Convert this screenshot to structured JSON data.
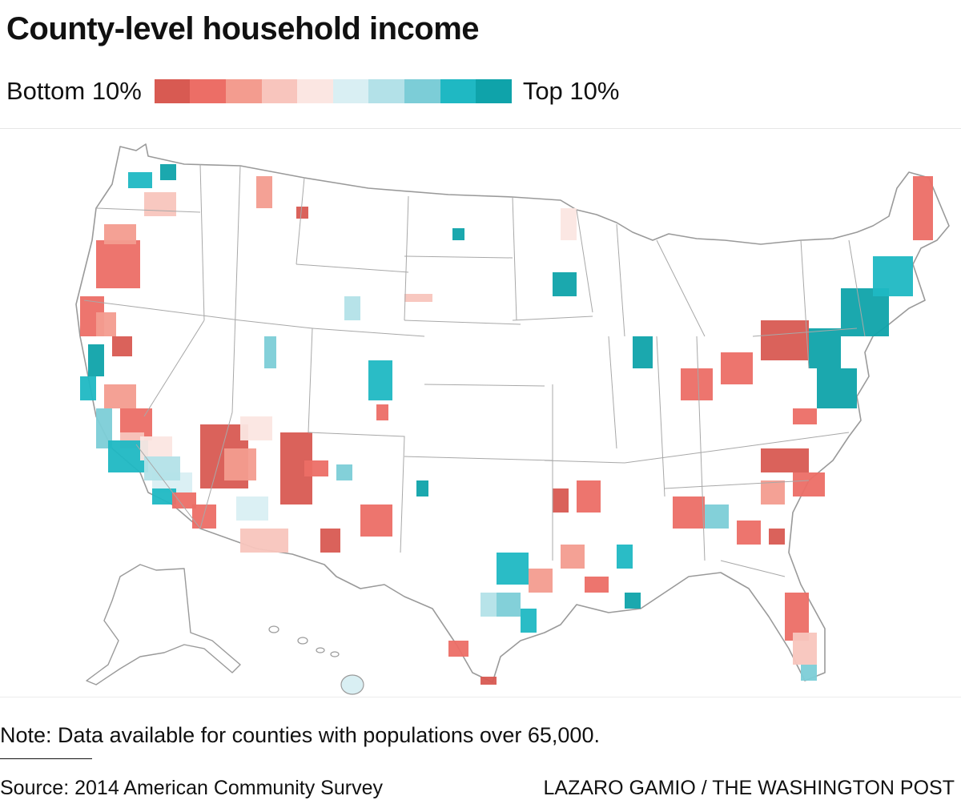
{
  "header": {
    "title": "County-level household income"
  },
  "legend": {
    "low_label": "Bottom 10%",
    "high_label": "Top 10%",
    "colors": [
      "#d85a52",
      "#ec6e66",
      "#f39c8f",
      "#f8c5bd",
      "#fbe6e2",
      "#d9eff3",
      "#b3e1e8",
      "#7ccdd7",
      "#1fb8c3",
      "#0fa3aa"
    ]
  },
  "chart_data": {
    "type": "choropleth",
    "title": "County-level household income",
    "scale": "income percentile deciles",
    "legend_entries": [
      "Bottom 10%",
      "Top 10%"
    ],
    "bins": 10,
    "regions_shown": [
      "Contiguous United States",
      "Alaska",
      "Hawaii"
    ]
  },
  "footer": {
    "note": "Note: Data available for counties with populations over 65,000.",
    "source": "Source: 2014 American Community Survey",
    "credit": "LAZARO GAMIO / THE WASHINGTON POST"
  }
}
